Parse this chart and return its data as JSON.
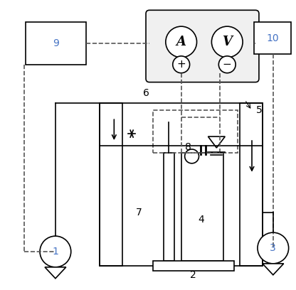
{
  "title": "",
  "background_color": "#ffffff",
  "dashed_line_color": "#555555",
  "solid_line_color": "#000000",
  "label_color": "#4472c4",
  "label_fontsize": 11,
  "number_fontsize": 10
}
